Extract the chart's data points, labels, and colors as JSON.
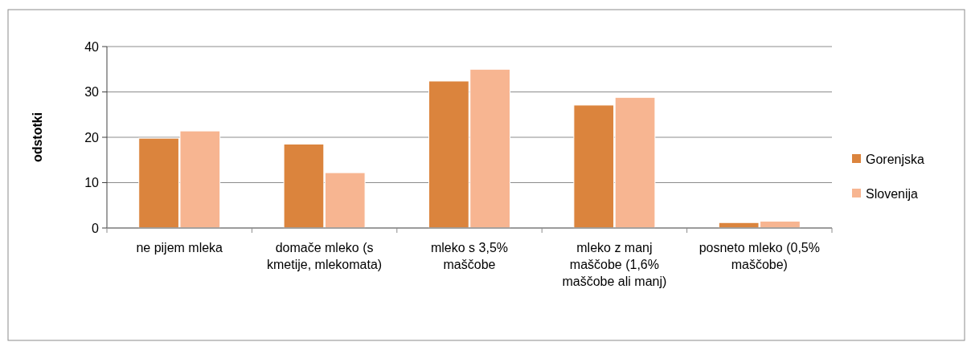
{
  "chart_data": {
    "type": "bar",
    "ylabel": "odstotki",
    "categories": [
      "ne pijem mleka",
      "domače mleko (s kmetije, mlekomata)",
      "mleko s 3,5% maščobe",
      "mleko z manj maščobe (1,6% maščobe ali manj)",
      "posneto mleko (0,5% maščobe)"
    ],
    "series": [
      {
        "name": "Gorenjska",
        "color": "#db843d",
        "values": [
          19.8,
          18.5,
          32.4,
          27.1,
          1.2
        ]
      },
      {
        "name": "Slovenija",
        "color": "#f7b591",
        "values": [
          21.4,
          12.2,
          35.0,
          28.8,
          1.5
        ]
      }
    ],
    "ylim": [
      0,
      40
    ],
    "yticks": [
      0,
      10,
      20,
      30,
      40
    ],
    "grid": "y",
    "legend": "right"
  }
}
